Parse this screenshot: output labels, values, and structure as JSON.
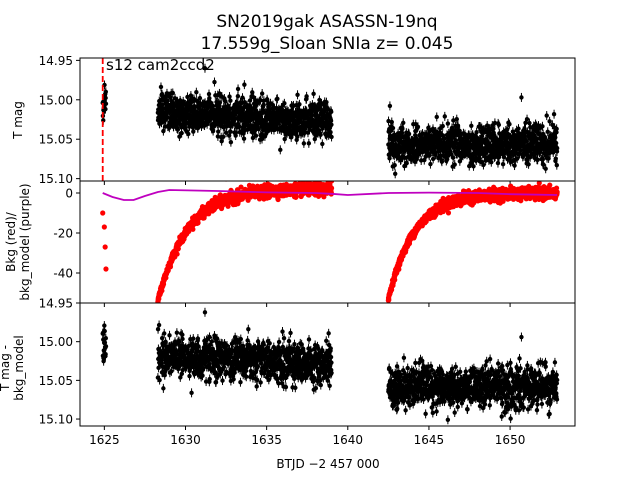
{
  "figure": {
    "title_line1": "SN2019gak  ASASSN-19nq",
    "title_line2": "17.559g_Sloan SNIa z= 0.045"
  },
  "chart_data": [
    {
      "type": "scatter",
      "panel": "top",
      "ylabel": "T mag",
      "xlim": [
        1623.5,
        1654.0
      ],
      "ylim": [
        15.103,
        14.947
      ],
      "y_inverted": true,
      "yticks": [
        "14.95",
        "15.00",
        "15.05",
        "15.10"
      ],
      "annotation": "s12 cam2ccd2",
      "marker_color": "#000000",
      "vline": {
        "x": 1624.9,
        "color": "#ff0000",
        "style": "dashed"
      },
      "segments": [
        {
          "x_start": 1624.9,
          "x_end": 1625.1,
          "y_center": 15.008,
          "scatter": 0.013
        },
        {
          "x_start": 1628.3,
          "x_end": 1639.0,
          "y_center": 15.015,
          "y_center_end": 15.028,
          "scatter": 0.012
        },
        {
          "x_start": 1642.5,
          "x_end": 1652.9,
          "y_center": 15.056,
          "scatter": 0.012
        }
      ],
      "outliers": [
        {
          "x": 1650.7,
          "y": 14.997
        },
        {
          "x": 1631.2,
          "y": 14.96
        }
      ]
    },
    {
      "type": "scatter",
      "panel": "middle",
      "ylabel_line1": "Bkg (red)/",
      "ylabel_line2": "bkg_model (purple)",
      "xlim": [
        1623.5,
        1654.0
      ],
      "ylim": [
        -55,
        6
      ],
      "yticks": [
        "0",
        "-20",
        "-40"
      ],
      "bkg_color": "#ff0000",
      "model_color": "#bf00bf",
      "bkg_segments": [
        {
          "x": [
            1624.9,
            1625.0,
            1625.05,
            1625.1
          ],
          "y": [
            -10,
            -17,
            -27,
            -38
          ]
        },
        {
          "x_start": 1628.3,
          "x_end": 1639.0,
          "y_start": -54,
          "y_end": 2,
          "tau": 1.8,
          "scatter": 1.2
        },
        {
          "x_start": 1642.5,
          "x_end": 1652.9,
          "y_start": -53,
          "y_end": 0,
          "tau": 1.6,
          "scatter": 1.2
        }
      ],
      "outliers": [
        {
          "x": 1632.5,
          "y": 7
        },
        {
          "x": 1639.0,
          "y": 6
        }
      ],
      "model_line": {
        "x": [
          1624.9,
          1625.5,
          1626.2,
          1626.8,
          1627.5,
          1628.3,
          1629.0,
          1632.0,
          1635.0,
          1638.0,
          1639.0,
          1640.0,
          1642.5,
          1645.0,
          1648.0,
          1650.0,
          1652.9
        ],
        "y": [
          0,
          -2,
          -3.5,
          -3.5,
          -1.5,
          0.5,
          1.5,
          1.0,
          0.3,
          0.0,
          -0.4,
          -1.0,
          0.0,
          0.2,
          0.0,
          -0.6,
          -1.0
        ]
      }
    },
    {
      "type": "scatter",
      "panel": "bottom",
      "ylabel_line1": "T mag -",
      "ylabel_line2": "bkg_model",
      "xlim": [
        1623.5,
        1654.0
      ],
      "ylim": [
        15.109,
        14.95
      ],
      "y_inverted": true,
      "yticks": [
        "14.95",
        "15.00",
        "15.05",
        "15.10"
      ],
      "xticks": [
        "1625",
        "1630",
        "1635",
        "1640",
        "1645",
        "1650"
      ],
      "xlabel": "BTJD −2 457 000",
      "marker_color": "#000000",
      "segments": [
        {
          "x_start": 1624.9,
          "x_end": 1625.1,
          "y_center": 15.005,
          "scatter": 0.015
        },
        {
          "x_start": 1628.3,
          "x_end": 1639.0,
          "y_center": 15.017,
          "y_center_end": 15.03,
          "scatter": 0.013
        },
        {
          "x_start": 1642.5,
          "x_end": 1652.9,
          "y_center": 15.058,
          "scatter": 0.013
        }
      ],
      "outliers": [
        {
          "x": 1650.7,
          "y": 14.994
        },
        {
          "x": 1631.2,
          "y": 14.962
        }
      ]
    }
  ]
}
